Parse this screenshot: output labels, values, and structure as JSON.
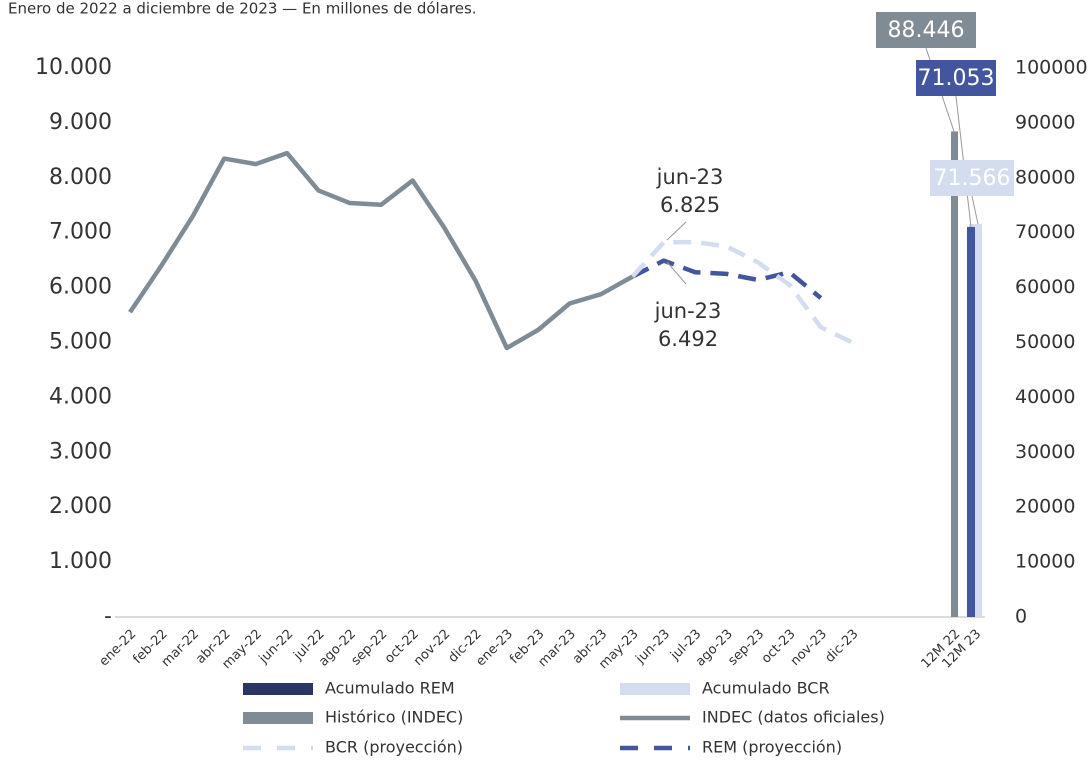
{
  "chart_data": {
    "type": "line-bar",
    "subtitle": "Enero de 2022 a diciembre de 2023 — En millones de dólares.",
    "categories": [
      "ene-22",
      "feb-22",
      "mar-22",
      "abr-22",
      "may-22",
      "jun-22",
      "jul-22",
      "ago-22",
      "sep-22",
      "oct-22",
      "nov-22",
      "dic-22",
      "ene-23",
      "feb-23",
      "mar-23",
      "abr-23",
      "may-23",
      "jun-23",
      "jul-23",
      "ago-23",
      "sep-23",
      "oct-23",
      "nov-23",
      "dic-23",
      "12M 22",
      "12M 23"
    ],
    "ylim": [
      0,
      10000
    ],
    "yticks": [
      {
        "value": 0,
        "label": "-"
      },
      {
        "value": 1000,
        "label": "1.000"
      },
      {
        "value": 2000,
        "label": "2.000"
      },
      {
        "value": 3000,
        "label": "3.000"
      },
      {
        "value": 4000,
        "label": "4.000"
      },
      {
        "value": 5000,
        "label": "5.000"
      },
      {
        "value": 6000,
        "label": "6.000"
      },
      {
        "value": 7000,
        "label": "7.000"
      },
      {
        "value": 8000,
        "label": "8.000"
      },
      {
        "value": 9000,
        "label": "9.000"
      },
      {
        "value": 10000,
        "label": "10.000"
      }
    ],
    "y2lim": [
      0,
      100000
    ],
    "y2ticks": [
      0,
      10000,
      20000,
      30000,
      40000,
      50000,
      60000,
      70000,
      80000,
      90000,
      100000
    ],
    "series": [
      {
        "name": "Acumulado REM",
        "color": "#44559f",
        "kind": "bar",
        "axis": "y2",
        "values": [
          null,
          null,
          null,
          null,
          null,
          null,
          null,
          null,
          null,
          null,
          null,
          null,
          null,
          null,
          null,
          null,
          null,
          null,
          null,
          null,
          null,
          null,
          null,
          null,
          null,
          71053
        ],
        "value_labels": [
          null,
          null,
          null,
          null,
          null,
          null,
          null,
          null,
          null,
          null,
          null,
          null,
          null,
          null,
          null,
          null,
          null,
          null,
          null,
          null,
          null,
          null,
          null,
          null,
          null,
          "71.053"
        ]
      },
      {
        "name": "Acumulado BCR",
        "color": "#d3ddef",
        "kind": "bar",
        "axis": "y2",
        "values": [
          null,
          null,
          null,
          null,
          null,
          null,
          null,
          null,
          null,
          null,
          null,
          null,
          null,
          null,
          null,
          null,
          null,
          null,
          null,
          null,
          null,
          null,
          null,
          null,
          null,
          71566
        ],
        "value_labels": [
          null,
          null,
          null,
          null,
          null,
          null,
          null,
          null,
          null,
          null,
          null,
          null,
          null,
          null,
          null,
          null,
          null,
          null,
          null,
          null,
          null,
          null,
          null,
          null,
          null,
          "71.566"
        ]
      },
      {
        "name": "Histórico (INDEC)",
        "color": "#7f8b95",
        "kind": "bar",
        "axis": "y2",
        "values": [
          null,
          null,
          null,
          null,
          null,
          null,
          null,
          null,
          null,
          null,
          null,
          null,
          null,
          null,
          null,
          null,
          null,
          null,
          null,
          null,
          null,
          null,
          null,
          null,
          88446,
          null
        ],
        "value_labels": [
          null,
          null,
          null,
          null,
          null,
          null,
          null,
          null,
          null,
          null,
          null,
          null,
          null,
          null,
          null,
          null,
          null,
          null,
          null,
          null,
          null,
          null,
          null,
          null,
          "88.446",
          null
        ]
      },
      {
        "name": "REM (proyección)",
        "color": "#44559f",
        "kind": "line",
        "dashed": true,
        "values": [
          null,
          null,
          null,
          null,
          null,
          null,
          null,
          null,
          null,
          null,
          null,
          null,
          null,
          null,
          null,
          null,
          6200,
          6492,
          6280,
          6250,
          6140,
          6280,
          5810,
          null,
          null,
          null
        ]
      },
      {
        "name": "BCR (proyección)",
        "color": "#d3ddef",
        "kind": "line",
        "dashed": true,
        "values": [
          null,
          null,
          null,
          null,
          null,
          null,
          null,
          null,
          null,
          null,
          null,
          null,
          null,
          null,
          null,
          null,
          6200,
          6825,
          6830,
          6750,
          6460,
          6050,
          5280,
          5000,
          null,
          null
        ]
      },
      {
        "name": "INDEC (datos oficiales)",
        "color": "#7f8b95",
        "kind": "line",
        "dashed": false,
        "values": [
          5550,
          6400,
          7300,
          8350,
          8250,
          8450,
          7770,
          7540,
          7510,
          7950,
          7100,
          6130,
          4900,
          5230,
          5710,
          5880,
          6200,
          null,
          null,
          null,
          null,
          null,
          null,
          null,
          null,
          null
        ]
      }
    ],
    "annotations": [
      {
        "lines": [
          "jun-23",
          "6.825"
        ]
      },
      {
        "lines": [
          "jun-23",
          "6.492"
        ]
      }
    ]
  }
}
